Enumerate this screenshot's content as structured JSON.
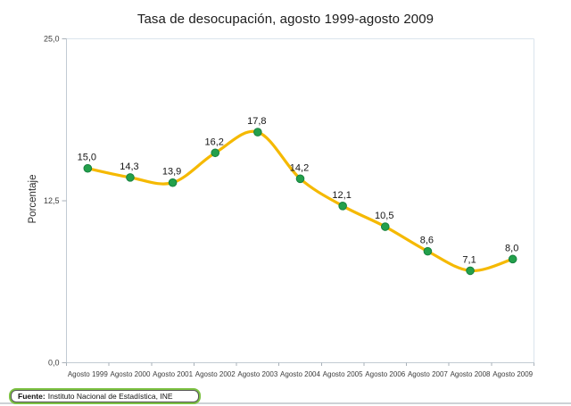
{
  "chart_data": {
    "type": "line",
    "title": "Tasa de desocupación, agosto 1999-agosto 2009",
    "categories": [
      "Agosto 1999",
      "Agosto 2000",
      "Agosto 2001",
      "Agosto 2002",
      "Agosto 2003",
      "Agosto 2004",
      "Agosto 2005",
      "Agosto 2006",
      "Agosto 2007",
      "Agosto 2008",
      "Agosto 2009"
    ],
    "values": [
      15.0,
      14.3,
      13.9,
      16.2,
      17.8,
      14.2,
      12.1,
      10.5,
      8.6,
      7.1,
      8.0
    ],
    "xlabel": "",
    "ylabel": "Porcentaje",
    "ylim": [
      0,
      25
    ],
    "yticks": [
      0,
      12.5,
      25
    ],
    "grid": false,
    "legend": "none",
    "smooth": true,
    "decimal_separator": ",",
    "data_labels_shown": true
  },
  "colors": {
    "line": "#F5B900",
    "marker_fill": "#23A04B",
    "marker_edge": "#17813F",
    "axis_line": "#C2CBD3",
    "plot_border": "#DAE4ED",
    "tick": "#A9B1B9",
    "tick_label": "#3D3D3D",
    "data_label": "#141414",
    "source_box_border": "#7DC243",
    "source_box_inner_border": "#565656",
    "divider": "#CDD2D6"
  },
  "footer": {
    "label": "Fuente:",
    "text": "Instituto Nacional de Estadística, INE"
  }
}
